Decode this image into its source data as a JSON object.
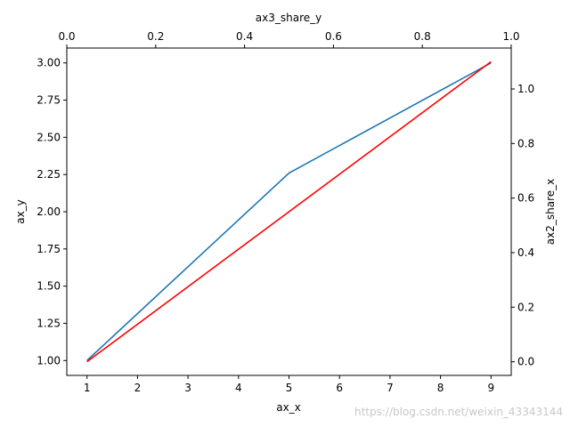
{
  "chart_data": {
    "type": "line",
    "axes": {
      "bottom_x": {
        "label": "ax_x",
        "range": [
          0.6,
          9.4
        ],
        "ticks": [
          1,
          2,
          3,
          4,
          5,
          6,
          7,
          8,
          9
        ],
        "tick_labels": [
          "1",
          "2",
          "3",
          "4",
          "5",
          "6",
          "7",
          "8",
          "9"
        ]
      },
      "left_y": {
        "label": "ax_y",
        "range": [
          0.9,
          3.1
        ],
        "ticks": [
          1.0,
          1.25,
          1.5,
          1.75,
          2.0,
          2.25,
          2.5,
          2.75,
          3.0
        ],
        "tick_labels": [
          "1.00",
          "1.25",
          "1.50",
          "1.75",
          "2.00",
          "2.25",
          "2.50",
          "2.75",
          "3.00"
        ]
      },
      "right_y": {
        "label": "ax2_share_x",
        "range": [
          -0.05,
          1.15
        ],
        "ticks": [
          0.0,
          0.2,
          0.4,
          0.6,
          0.8,
          1.0
        ],
        "tick_labels": [
          "0.0",
          "0.2",
          "0.4",
          "0.6",
          "0.8",
          "1.0"
        ]
      },
      "top_x": {
        "label": "ax3_share_y",
        "range": [
          0.0,
          1.0
        ],
        "ticks": [
          0.0,
          0.2,
          0.4,
          0.6,
          0.8,
          1.0
        ],
        "tick_labels": [
          "0.0",
          "0.2",
          "0.4",
          "0.6",
          "0.8",
          "1.0"
        ]
      }
    },
    "grid": false,
    "series": [
      {
        "x": [
          1,
          5,
          9
        ],
        "y": [
          1.0,
          2.26,
          3.0
        ],
        "y_axis": "left_y",
        "color": "#1f77b4"
      },
      {
        "x": [
          1,
          9
        ],
        "y": [
          0.0,
          1.1
        ],
        "y_axis": "right_y",
        "color": "#ff0000"
      }
    ]
  },
  "watermark": "https://blog.csdn.net/weixin_43343144"
}
